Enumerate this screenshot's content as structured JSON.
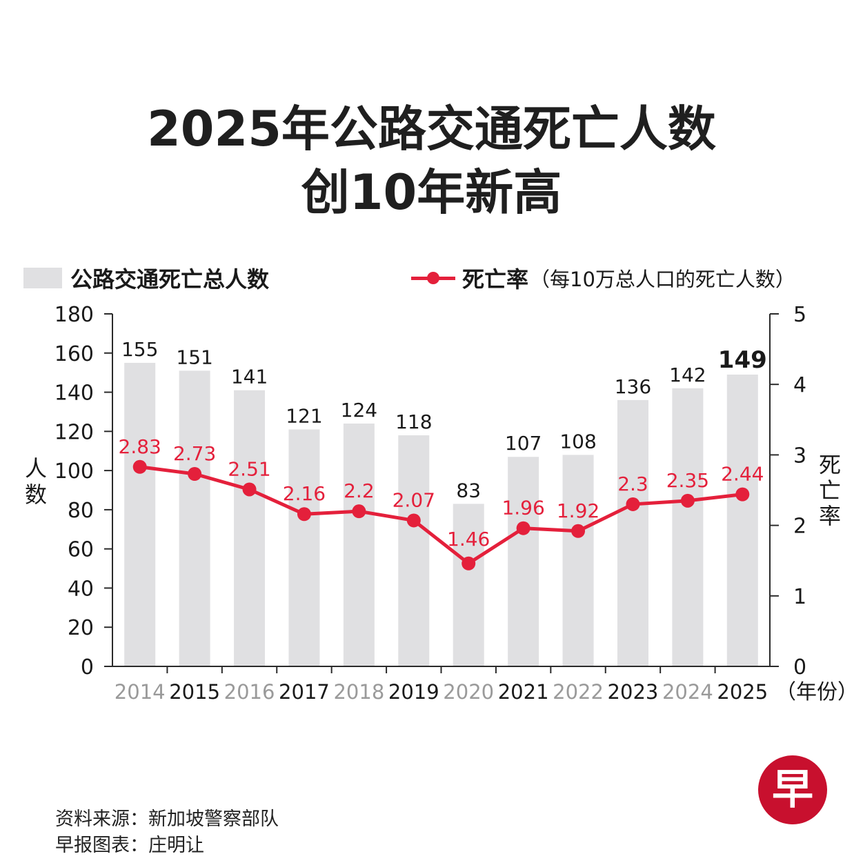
{
  "title": {
    "line1": "2025年公路交通死亡人数",
    "line2": "创10年新高"
  },
  "legend": {
    "bars_label": "公路交通死亡总人数",
    "line_label": "死亡率",
    "line_note": "（每10万总人口的死亡人数）"
  },
  "chart_data": {
    "type": "bar+line",
    "categories": [
      "2014",
      "2015",
      "2016",
      "2017",
      "2018",
      "2019",
      "2020",
      "2021",
      "2022",
      "2023",
      "2024",
      "2025"
    ],
    "x_unit_label": "（年份）",
    "series": [
      {
        "name": "公路交通死亡总人数",
        "type": "bar",
        "axis": "left",
        "values": [
          155,
          151,
          141,
          121,
          124,
          118,
          83,
          107,
          108,
          136,
          142,
          149
        ],
        "color": "#e0e0e2",
        "highlight_last": true
      },
      {
        "name": "死亡率",
        "type": "line",
        "axis": "right",
        "values": [
          2.83,
          2.73,
          2.51,
          2.16,
          2.2,
          2.07,
          1.46,
          1.96,
          1.92,
          2.3,
          2.35,
          2.44
        ],
        "color": "#e4203b"
      }
    ],
    "y_left": {
      "label": "人数",
      "range": [
        0,
        180
      ],
      "ticks": [
        0,
        20,
        40,
        60,
        80,
        100,
        120,
        140,
        160,
        180
      ]
    },
    "y_right": {
      "label": "死亡率",
      "range": [
        0,
        5
      ],
      "ticks": [
        0,
        1,
        2,
        3,
        4,
        5
      ]
    },
    "grid": false
  },
  "footer": {
    "source": "资料来源：新加坡警察部队",
    "credit": "早报图表：庄明让"
  },
  "logo": {
    "char": "早",
    "color": "#c8102e"
  }
}
